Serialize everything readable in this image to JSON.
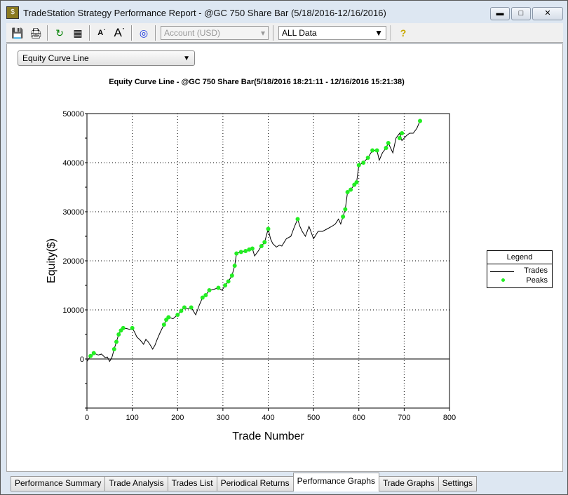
{
  "window": {
    "title": "TradeStation Strategy Performance Report - @GC 750 Share Bar (5/18/2016-12/16/2016)",
    "buttons": [
      "minimize",
      "maximize",
      "close"
    ]
  },
  "toolbar": {
    "icons": [
      "save-icon",
      "print-icon",
      "refresh-icon",
      "settings-icon",
      "decrease-font-icon",
      "increase-font-icon",
      "target-icon",
      "help-icon"
    ],
    "account": "Account (USD)",
    "data_range": "ALL Data"
  },
  "graph_select": "Equity Curve Line",
  "tabs": [
    "Performance Summary",
    "Trade Analysis",
    "Trades List",
    "Periodical Returns",
    "Performance Graphs",
    "Trade Graphs",
    "Settings"
  ],
  "active_tab": "Performance Graphs",
  "chart_data": {
    "type": "line",
    "title": "Equity Curve Line - @GC 750 Share Bar(5/18/2016 18:21:11 - 12/16/2016 15:21:38)",
    "xlabel": "Trade Number",
    "ylabel": "Equity($)",
    "xlim": [
      0,
      800
    ],
    "ylim": [
      -10000,
      50000
    ],
    "xticks": [
      "0",
      "100",
      "200",
      "300",
      "400",
      "500",
      "600",
      "700",
      "800"
    ],
    "yticks": [
      "0",
      "10000",
      "20000",
      "30000",
      "40000",
      "50000"
    ],
    "grid": true,
    "legend_title": "Legend",
    "legend_placement": "right",
    "colors": {
      "trades": "#000000",
      "peaks": "#22ee22"
    },
    "series": [
      {
        "name": "Trades",
        "x": [
          0,
          5,
          10,
          15,
          25,
          32,
          40,
          45,
          50,
          55,
          60,
          65,
          70,
          75,
          80,
          88,
          95,
          100,
          105,
          110,
          118,
          125,
          130,
          135,
          140,
          145,
          150,
          155,
          162,
          170,
          175,
          180,
          190,
          200,
          208,
          215,
          222,
          230,
          240,
          248,
          255,
          262,
          270,
          280,
          290,
          298,
          305,
          312,
          320,
          326,
          330,
          340,
          350,
          358,
          365,
          370,
          378,
          385,
          392,
          400,
          405,
          410,
          418,
          425,
          430,
          440,
          450,
          458,
          465,
          470,
          475,
          482,
          490,
          500,
          510,
          520,
          530,
          540,
          548,
          555,
          560,
          565,
          570,
          575,
          582,
          590,
          595,
          600,
          610,
          620,
          630,
          640,
          645,
          652,
          660,
          665,
          670,
          675,
          682,
          690,
          695,
          700,
          705,
          712,
          720,
          728,
          735
        ],
        "y": [
          -500,
          200,
          500,
          1200,
          800,
          1000,
          300,
          400,
          -500,
          300,
          2000,
          3500,
          5000,
          5800,
          6300,
          6200,
          6000,
          6300,
          5500,
          4500,
          3800,
          3000,
          4000,
          3500,
          2800,
          2000,
          2800,
          4000,
          5500,
          7000,
          8000,
          8500,
          8200,
          9000,
          9800,
          10500,
          10200,
          10500,
          9000,
          11000,
          12500,
          13000,
          14000,
          14200,
          14500,
          14000,
          15000,
          15800,
          17000,
          19000,
          21500,
          21800,
          22000,
          22300,
          22500,
          21000,
          22000,
          23000,
          23800,
          26500,
          24500,
          23500,
          22800,
          23200,
          23000,
          24500,
          25000,
          27000,
          28500,
          27000,
          26000,
          25000,
          27000,
          24500,
          26000,
          26000,
          26500,
          27000,
          27500,
          28500,
          27500,
          29000,
          30500,
          34000,
          34500,
          35500,
          36000,
          39500,
          40000,
          41000,
          42500,
          42500,
          40500,
          42000,
          43000,
          44000,
          43000,
          42000,
          45000,
          46000,
          44500,
          45000,
          45500,
          46000,
          46000,
          47000,
          48500
        ]
      },
      {
        "name": "Peaks",
        "x": [
          8,
          15,
          60,
          65,
          70,
          75,
          80,
          100,
          170,
          175,
          180,
          200,
          208,
          215,
          230,
          255,
          262,
          270,
          290,
          305,
          312,
          320,
          326,
          330,
          340,
          350,
          358,
          365,
          385,
          392,
          400,
          465,
          565,
          570,
          575,
          582,
          590,
          595,
          600,
          610,
          620,
          630,
          640,
          660,
          665,
          690,
          695,
          735
        ],
        "y": [
          600,
          1200,
          2000,
          3500,
          5000,
          5800,
          6300,
          6300,
          7000,
          8000,
          8500,
          9000,
          9800,
          10500,
          10500,
          12500,
          13000,
          14000,
          14500,
          15000,
          15800,
          17000,
          19000,
          21500,
          21800,
          22000,
          22300,
          22500,
          23000,
          23800,
          26500,
          28500,
          29000,
          30500,
          34000,
          34500,
          35500,
          36000,
          39500,
          40000,
          41000,
          42500,
          42500,
          43000,
          44000,
          45000,
          46000,
          48500
        ]
      }
    ]
  }
}
